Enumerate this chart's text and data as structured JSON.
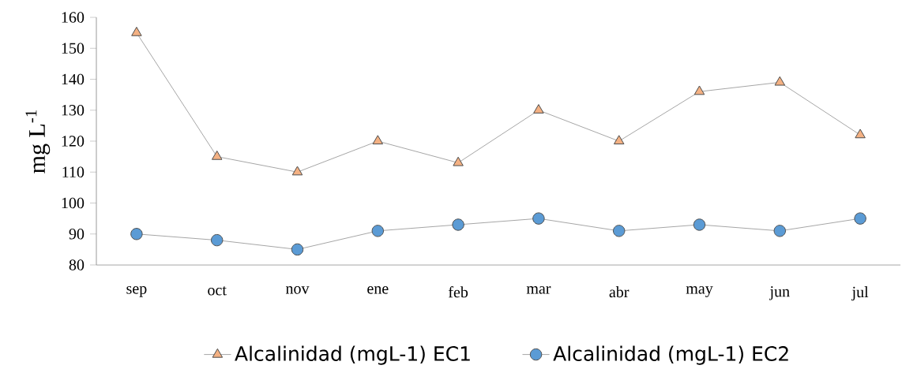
{
  "chart_data": {
    "type": "line",
    "ylabel": "mg L$^{-1}$",
    "categories": [
      "sep",
      "oct",
      "nov",
      "ene",
      "feb",
      "mar",
      "abr",
      "may",
      "jun",
      "jul"
    ],
    "series": [
      {
        "name": "Alcalinidad (mgL-1) EC1",
        "color": "#f4b183",
        "marker": "triangle",
        "values": [
          155,
          115,
          110,
          120,
          113,
          130,
          120,
          136,
          139,
          122
        ]
      },
      {
        "name": "Alcalinidad (mgL-1) EC2",
        "color": "#5b9bd5",
        "marker": "circle",
        "values": [
          90,
          88,
          85,
          91,
          93,
          95,
          91,
          93,
          91,
          95
        ]
      }
    ],
    "ylim": [
      80,
      160
    ],
    "yticks": [
      80,
      90,
      100,
      110,
      120,
      130,
      140,
      150,
      160
    ],
    "grid": false,
    "legend": "bottom",
    "line_style": "solid"
  }
}
